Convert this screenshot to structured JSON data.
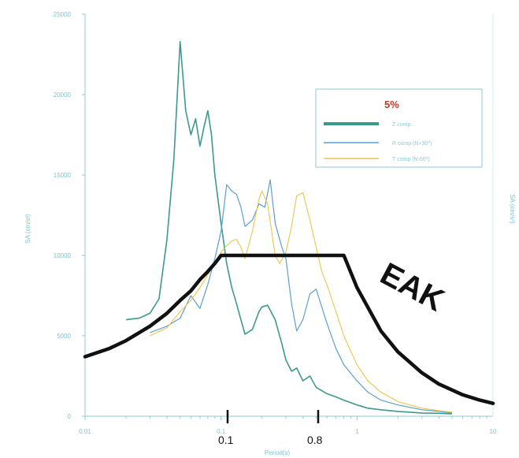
{
  "chart_data": {
    "type": "line",
    "xscale": "log",
    "xlim": [
      0.01,
      10
    ],
    "ylim": [
      0,
      25000
    ],
    "xlabel": "Period(s)",
    "ylabel": "SA (cm/s²)",
    "right_axis_label": "SA (cm/s²)",
    "grid": false,
    "legend_position": "top-right",
    "x_tick_labels": [
      "0.01",
      "0.1",
      "1",
      "10"
    ],
    "y_tick_labels": [
      "0",
      "5000",
      "10000",
      "15000",
      "20000",
      "25000"
    ],
    "legend": {
      "title": "5%",
      "entries": [
        "Z comp.",
        "R comp (N+30º)",
        "T comp (N-60º)"
      ]
    },
    "series": [
      {
        "name": "Z comp.",
        "color": "#3c9a8c",
        "width": 1.6,
        "x": [
          0.02,
          0.025,
          0.03,
          0.035,
          0.04,
          0.045,
          0.05,
          0.055,
          0.06,
          0.065,
          0.07,
          0.075,
          0.08,
          0.085,
          0.09,
          0.1,
          0.11,
          0.12,
          0.13,
          0.14,
          0.15,
          0.17,
          0.19,
          0.2,
          0.22,
          0.25,
          0.28,
          0.3,
          0.33,
          0.36,
          0.4,
          0.45,
          0.5,
          0.6,
          0.7,
          0.8,
          1.0,
          1.2,
          1.5,
          2,
          3,
          4,
          5
        ],
        "y": [
          6000,
          6100,
          6400,
          7300,
          11000,
          16000,
          23300,
          19000,
          17500,
          18500,
          16800,
          18000,
          19000,
          17500,
          15000,
          12000,
          9500,
          8000,
          7000,
          6000,
          5100,
          5400,
          6500,
          6800,
          6900,
          6000,
          4500,
          3500,
          2800,
          3000,
          2200,
          2500,
          1800,
          1400,
          1200,
          1000,
          700,
          500,
          400,
          300,
          200,
          180,
          150
        ]
      },
      {
        "name": "R comp (N+30º)",
        "color": "#5b9fd0",
        "width": 1.2,
        "x": [
          0.03,
          0.04,
          0.05,
          0.06,
          0.07,
          0.08,
          0.09,
          0.1,
          0.11,
          0.12,
          0.13,
          0.14,
          0.15,
          0.17,
          0.19,
          0.21,
          0.23,
          0.25,
          0.28,
          0.3,
          0.33,
          0.36,
          0.4,
          0.45,
          0.5,
          0.6,
          0.7,
          0.8,
          1.0,
          1.2,
          1.5,
          2,
          3,
          4,
          5
        ],
        "y": [
          5200,
          5600,
          6100,
          7500,
          6700,
          8200,
          9800,
          11500,
          14400,
          14000,
          13800,
          13000,
          11800,
          12200,
          13200,
          13000,
          14700,
          12000,
          10500,
          9800,
          7000,
          5300,
          6000,
          7600,
          7900,
          5800,
          4200,
          3200,
          2200,
          1500,
          1000,
          700,
          400,
          300,
          200
        ]
      },
      {
        "name": "T comp (N-60º)",
        "color": "#e9c64a",
        "width": 1.1,
        "x": [
          0.03,
          0.04,
          0.05,
          0.06,
          0.07,
          0.08,
          0.09,
          0.1,
          0.11,
          0.12,
          0.13,
          0.14,
          0.15,
          0.17,
          0.19,
          0.2,
          0.22,
          0.25,
          0.27,
          0.3,
          0.33,
          0.36,
          0.4,
          0.45,
          0.5,
          0.55,
          0.6,
          0.7,
          0.8,
          1.0,
          1.2,
          1.5,
          2,
          3,
          4,
          5
        ],
        "y": [
          5000,
          5500,
          6500,
          7200,
          8000,
          8800,
          9600,
          10200,
          10600,
          10900,
          11000,
          10500,
          9800,
          11500,
          13500,
          14000,
          13200,
          10000,
          9500,
          10200,
          11800,
          13700,
          13900,
          12200,
          10500,
          9000,
          8200,
          6500,
          5000,
          3200,
          2200,
          1500,
          900,
          500,
          350,
          250
        ]
      },
      {
        "name": "EAK",
        "color": "#111111",
        "width": 4.5,
        "x": [
          0.01,
          0.015,
          0.02,
          0.03,
          0.04,
          0.05,
          0.06,
          0.07,
          0.08,
          0.09,
          0.1,
          0.8,
          1.0,
          1.5,
          2,
          3,
          4,
          6,
          8,
          10
        ],
        "y": [
          3700,
          4200,
          4700,
          5600,
          6400,
          7200,
          7800,
          8500,
          9000,
          9500,
          10000,
          10000,
          8000,
          5300,
          4000,
          2700,
          2000,
          1330,
          1000,
          800
        ]
      }
    ],
    "annotations": [
      {
        "text": "EAK"
      },
      {
        "text": "0.1",
        "x": 0.1
      },
      {
        "text": "0.8",
        "x": 0.8
      }
    ]
  }
}
